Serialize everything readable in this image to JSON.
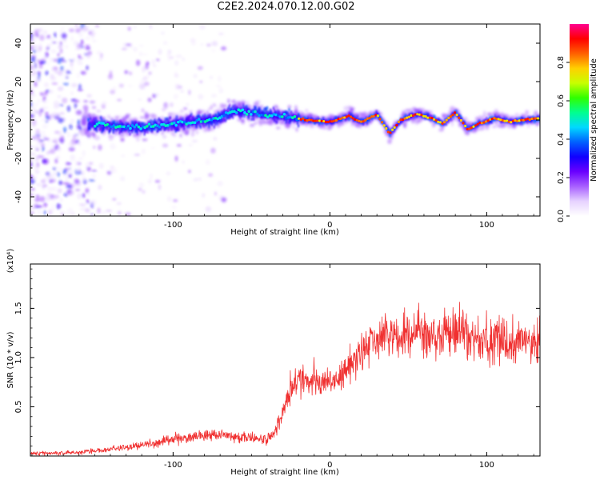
{
  "title": "C2E2.2024.070.12.00.G02",
  "chart_data": [
    {
      "type": "heatmap",
      "xlabel": "Height of straight line (km)",
      "ylabel": "Frequency (Hz)",
      "xlim": [
        -191,
        134
      ],
      "ylim": [
        -50,
        50
      ],
      "xticks": [
        -100,
        0,
        100
      ],
      "yticks": [
        -40,
        -20,
        0,
        20,
        40
      ],
      "colorbar": {
        "label": "Normalized spectral amplitude",
        "range": [
          0,
          1
        ],
        "ticks": [
          "0.0",
          "0.2",
          "0.4",
          "0.6",
          "0.8"
        ],
        "colormap": [
          "#ffffff",
          "#e6d2ff",
          "#a860ff",
          "#6a00ff",
          "#1000ff",
          "#0060ff",
          "#00d8ff",
          "#00ff90",
          "#30ff00",
          "#c8ff00",
          "#ffd000",
          "#ff6000",
          "#ff0000",
          "#ff0090"
        ]
      },
      "ridge": [
        {
          "x": -150,
          "y": -2
        },
        {
          "x": -130,
          "y": -4
        },
        {
          "x": -110,
          "y": -3
        },
        {
          "x": -90,
          "y": -1
        },
        {
          "x": -75,
          "y": 0
        },
        {
          "x": -60,
          "y": 5
        },
        {
          "x": -45,
          "y": 3
        },
        {
          "x": -30,
          "y": 2
        },
        {
          "x": -15,
          "y": 0
        },
        {
          "x": 0,
          "y": -1
        },
        {
          "x": 12,
          "y": 2
        },
        {
          "x": 20,
          "y": -1
        },
        {
          "x": 30,
          "y": 3
        },
        {
          "x": 38,
          "y": -7
        },
        {
          "x": 45,
          "y": 0
        },
        {
          "x": 55,
          "y": 3
        },
        {
          "x": 65,
          "y": 1
        },
        {
          "x": 72,
          "y": -2
        },
        {
          "x": 80,
          "y": 4
        },
        {
          "x": 88,
          "y": -5
        },
        {
          "x": 95,
          "y": -2
        },
        {
          "x": 105,
          "y": 1
        },
        {
          "x": 115,
          "y": -1
        },
        {
          "x": 134,
          "y": 1
        }
      ]
    },
    {
      "type": "line",
      "xlabel": "Height of straight line (km)",
      "ylabel": "SNR (10 * v/v)",
      "multiplier": "(x10⁴)",
      "xlim": [
        -191,
        134
      ],
      "ylim": [
        0,
        1.95
      ],
      "xticks": [
        -100,
        0,
        100
      ],
      "yticks": [
        0.5,
        1.0,
        1.5
      ],
      "line_color": "#f03030",
      "series": [
        {
          "x": [
            -191,
            -180,
            -170,
            -160,
            -150,
            -140,
            -130,
            -120,
            -110,
            -100,
            -90,
            -80,
            -70,
            -60,
            -50,
            -40,
            -35,
            -30,
            -25,
            -20,
            -15,
            -10,
            -5,
            0,
            5,
            10,
            15,
            20,
            25,
            30,
            35,
            40,
            45,
            50,
            55,
            60,
            65,
            70,
            75,
            80,
            85,
            90,
            95,
            100,
            105,
            110,
            115,
            120,
            125,
            134
          ],
          "y": [
            0.03,
            0.03,
            0.03,
            0.04,
            0.05,
            0.07,
            0.09,
            0.11,
            0.14,
            0.17,
            0.19,
            0.21,
            0.22,
            0.2,
            0.18,
            0.17,
            0.22,
            0.45,
            0.68,
            0.78,
            0.8,
            0.78,
            0.72,
            0.73,
            0.78,
            0.86,
            0.96,
            1.06,
            1.15,
            1.2,
            1.2,
            1.21,
            1.23,
            1.25,
            1.24,
            1.23,
            1.21,
            1.2,
            1.24,
            1.26,
            1.23,
            1.19,
            1.16,
            1.16,
            1.17,
            1.18,
            1.17,
            1.16,
            1.18,
            1.17
          ]
        }
      ]
    }
  ]
}
